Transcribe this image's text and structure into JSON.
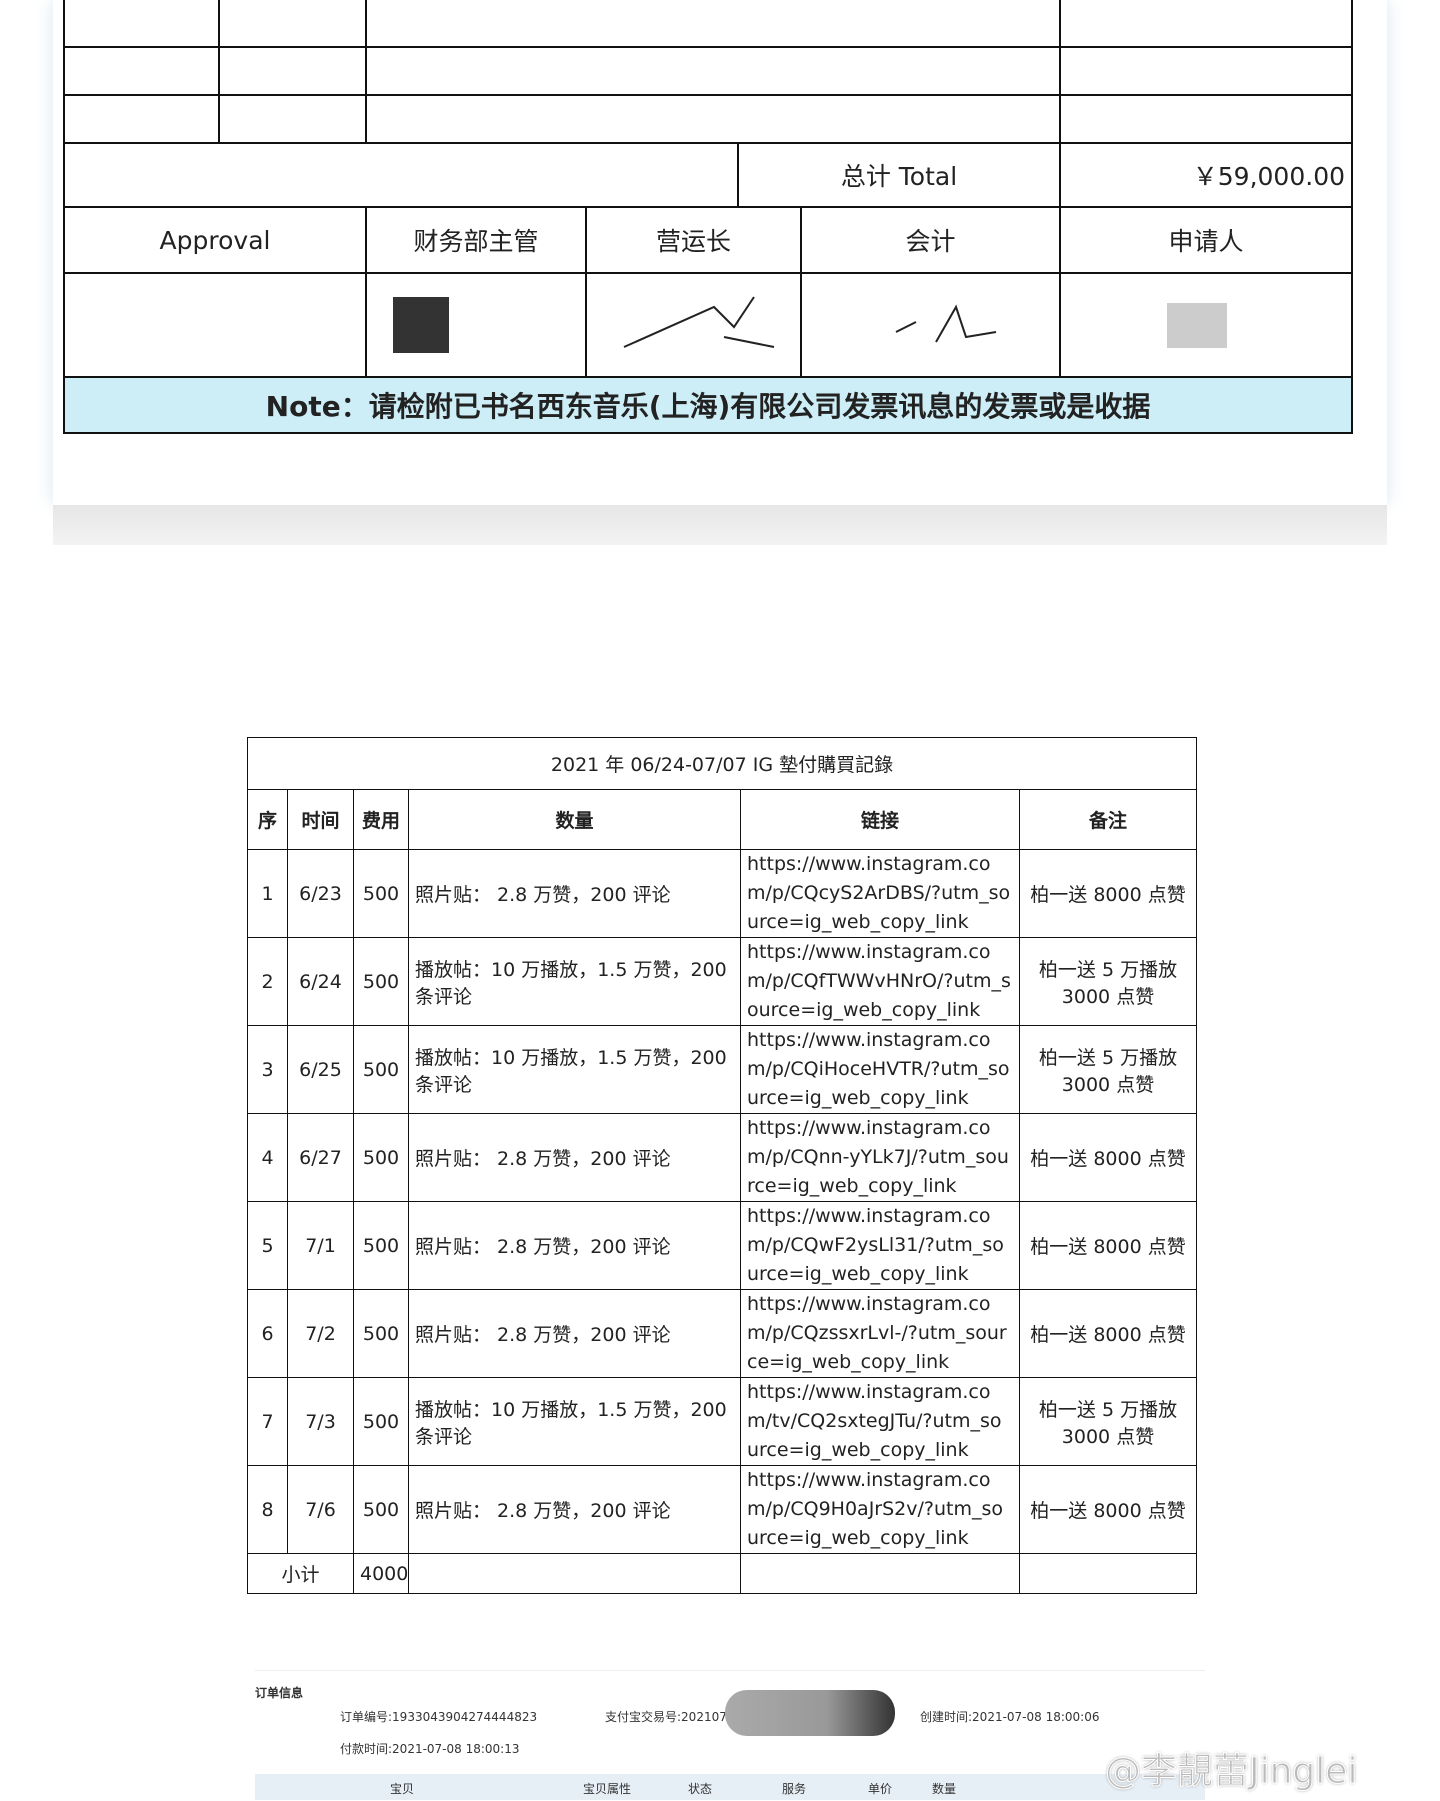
{
  "approval_form": {
    "total_label": "总计 Total",
    "total_value": "￥59,000.00",
    "approval_headers": [
      "Approval",
      "财务部主管",
      "营运长",
      "会计",
      "申请人"
    ],
    "note": "Note：请检附已书名西东音乐(上海)有限公司发票讯息的发票或是收据"
  },
  "record_table": {
    "title": "2021 年 06/24-07/07 IG 墊付購買記錄",
    "headers": [
      "序",
      "时间",
      "费用",
      "数量",
      "链接",
      "备注"
    ],
    "rows": [
      [
        1,
        "6/23",
        500,
        "照片贴： 2.8 万赞，200 评论",
        "https://www.instagram.com/p/CQcyS2ArDBS/?utm_source=ig_web_copy_link",
        "柏一送 8000 点赞"
      ],
      [
        2,
        "6/24",
        500,
        "播放帖：10 万播放，1.5 万赞，200 条评论",
        "https://www.instagram.com/p/CQfTWWvHNrO/?utm_source=ig_web_copy_link",
        "柏一送 5 万播放 3000 点赞"
      ],
      [
        3,
        "6/25",
        500,
        "播放帖：10 万播放，1.5 万赞，200 条评论",
        "https://www.instagram.com/p/CQiHoceHVTR/?utm_source=ig_web_copy_link",
        "柏一送 5 万播放 3000 点赞"
      ],
      [
        4,
        "6/27",
        500,
        "照片贴： 2.8 万赞，200 评论",
        "https://www.instagram.com/p/CQnn-yYLk7J/?utm_source=ig_web_copy_link",
        "柏一送 8000 点赞"
      ],
      [
        5,
        "7/1",
        500,
        "照片贴： 2.8 万赞，200 评论",
        "https://www.instagram.com/p/CQwF2ysLl31/?utm_source=ig_web_copy_link",
        "柏一送 8000 点赞"
      ],
      [
        6,
        "7/2",
        500,
        "照片贴： 2.8 万赞，200 评论",
        "https://www.instagram.com/p/CQzssxrLvl-/?utm_source=ig_web_copy_link",
        "柏一送 8000 点赞"
      ],
      [
        7,
        "7/3",
        500,
        "播放帖：10 万播放，1.5 万赞，200 条评论",
        "https://www.instagram.com/tv/CQ2sxtegJTu/?utm_source=ig_web_copy_link",
        "柏一送 5 万播放 3000 点赞"
      ],
      [
        8,
        "7/6",
        500,
        "照片贴： 2.8 万赞，200 评论",
        "https://www.instagram.com/p/CQ9H0aJrS2v/?utm_source=ig_web_copy_link",
        "柏一送 8000 点赞"
      ]
    ],
    "subtotal_label": "小计",
    "subtotal_value": 4000
  },
  "order_info": {
    "title": "订单信息",
    "order_no": "订单编号:1933043904274444823",
    "alipay_no": "支付宝交易号:202107",
    "created": "创建时间:2021-07-08 18:00:06",
    "paid": "付款时间:2021-07-08 18:00:13",
    "columns": [
      "宝贝",
      "宝贝属性",
      "状态",
      "服务",
      "单价",
      "数量"
    ]
  },
  "watermark": "@李靚蕾Jinglei"
}
